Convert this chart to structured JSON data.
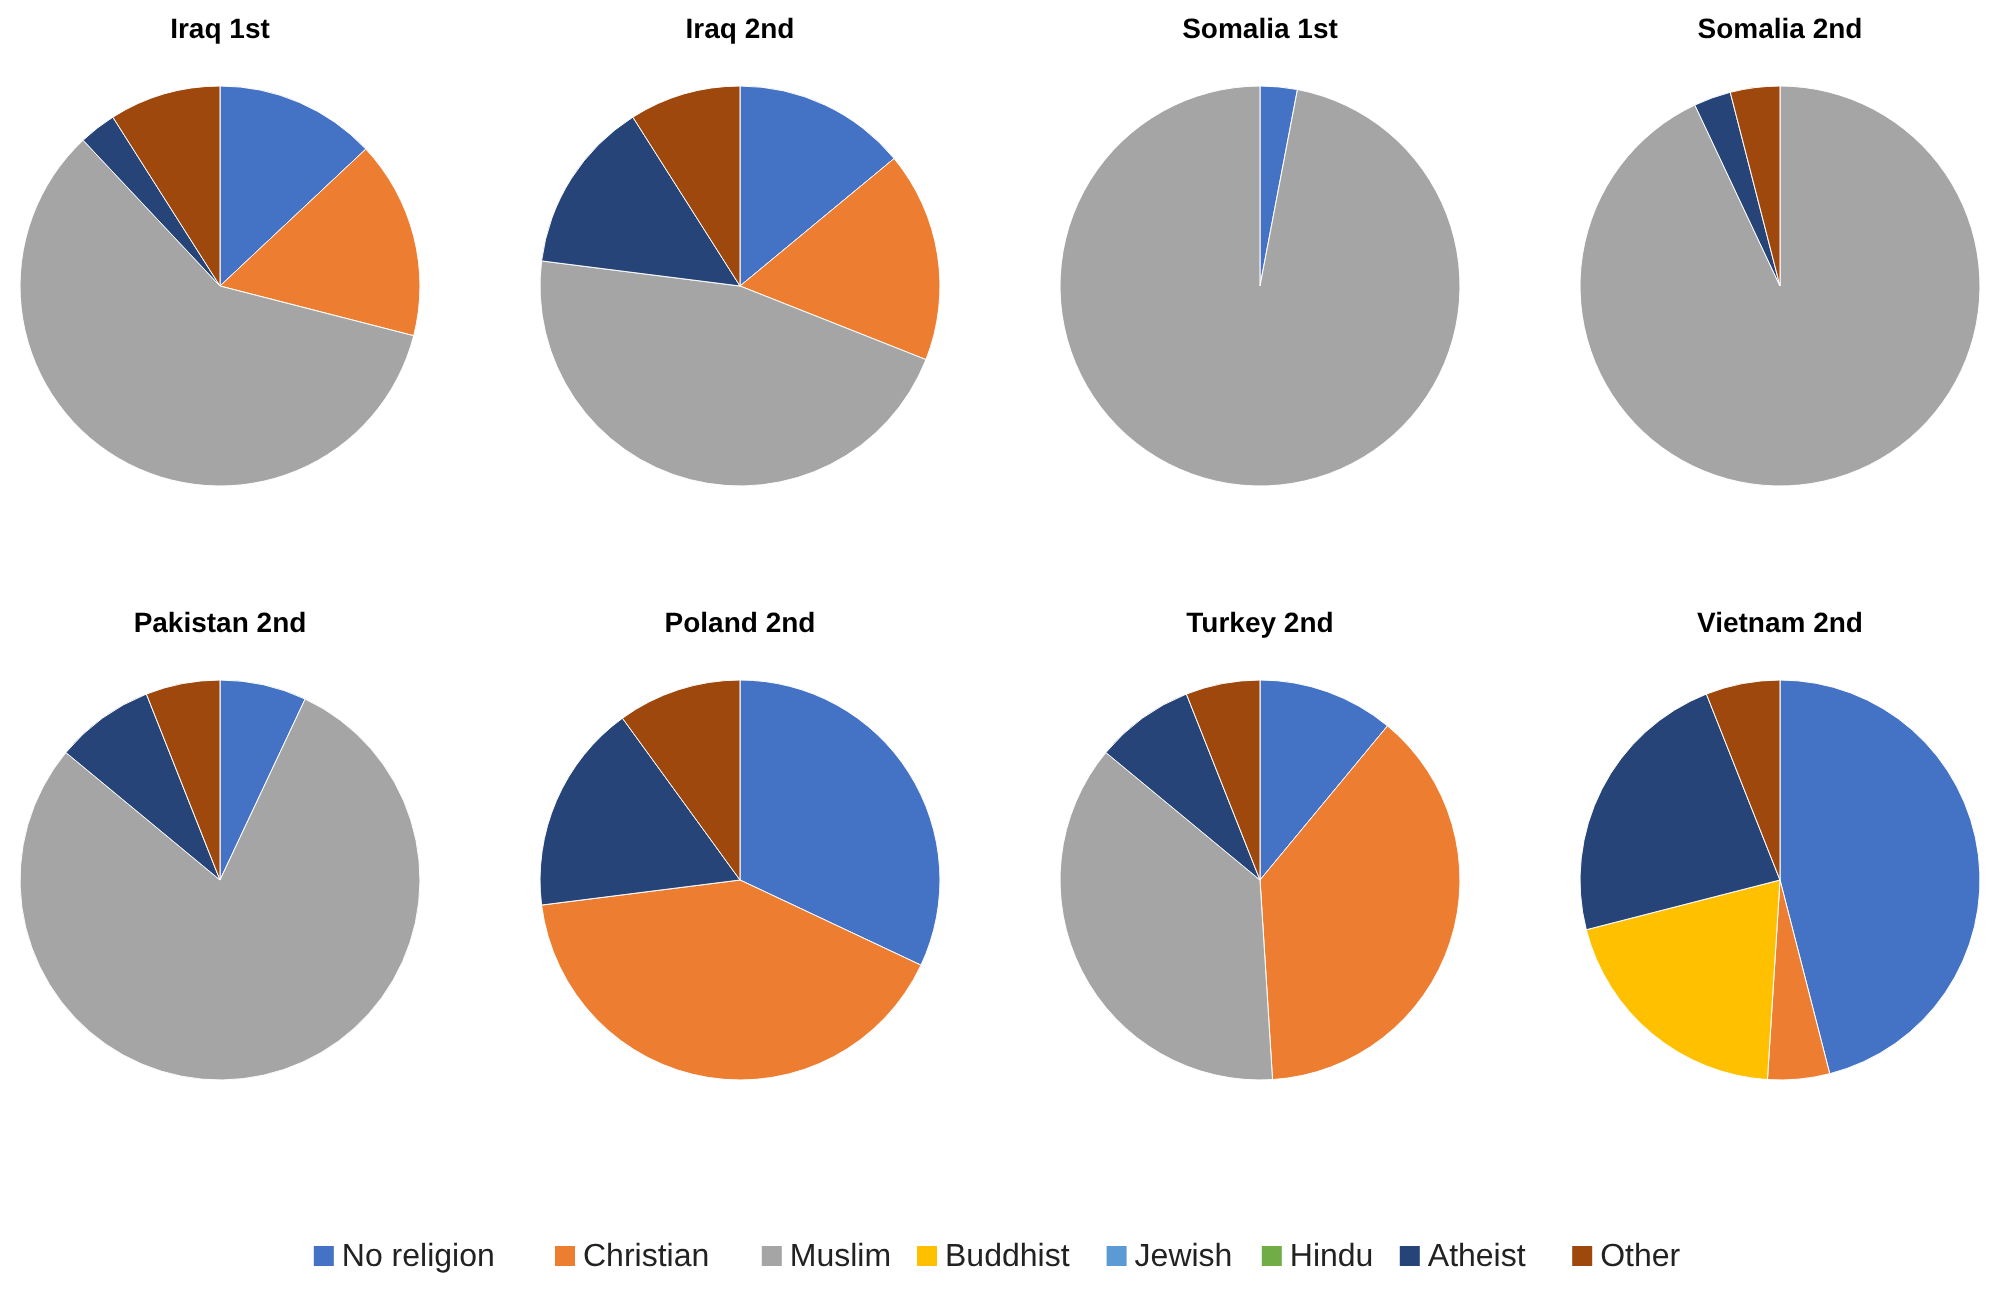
{
  "chart_data": [
    {
      "type": "pie",
      "title": "Iraq 1st",
      "legend": "bottom",
      "categories": [
        "No religion",
        "Christian",
        "Muslim",
        "Buddhist",
        "Jewish",
        "Hindu",
        "Atheist",
        "Other"
      ],
      "values": [
        13,
        16,
        59,
        0,
        0,
        0,
        3,
        9
      ],
      "colors": [
        "#4472c4",
        "#ed7d31",
        "#a5a5a5",
        "#ffc000",
        "#5b9bd5",
        "#70ad47",
        "#264478",
        "#9e480e"
      ]
    },
    {
      "type": "pie",
      "title": "Iraq 2nd",
      "categories": [
        null,
        null,
        null,
        null,
        null
      ],
      "values": [
        14,
        17,
        46,
        14,
        9
      ],
      "colors": [
        "#4472c4",
        "#ed7d31",
        "#a5a5a5",
        "#264478",
        "#9e480e"
      ]
    },
    {
      "type": "pie",
      "title": "Somalia 1st",
      "categories": [
        null,
        null
      ],
      "values": [
        3,
        97
      ],
      "colors": [
        "#4472c4",
        "#a5a5a5"
      ]
    },
    {
      "type": "pie",
      "title": "Somalia 2nd",
      "categories": [
        null,
        null,
        null
      ],
      "values": [
        93,
        3,
        4
      ],
      "colors": [
        "#a5a5a5",
        "#264478",
        "#9e480e"
      ]
    },
    {
      "type": "pie",
      "title": "Pakistan 2nd",
      "categories": [
        null,
        null,
        null,
        null
      ],
      "values": [
        7,
        79,
        8,
        6
      ],
      "colors": [
        "#4472c4",
        "#a5a5a5",
        "#264478",
        "#9e480e"
      ]
    },
    {
      "type": "pie",
      "title": "Poland 2nd",
      "categories": [
        null,
        null,
        null,
        null
      ],
      "values": [
        32,
        41,
        17,
        10
      ],
      "colors": [
        "#4472c4",
        "#ed7d31",
        "#264478",
        "#9e480e"
      ]
    },
    {
      "type": "pie",
      "title": "Turkey 2nd",
      "categories": [
        null,
        null,
        null,
        null,
        null
      ],
      "values": [
        11,
        38,
        37,
        8,
        6
      ],
      "colors": [
        "#4472c4",
        "#ed7d31",
        "#a5a5a5",
        "#264478",
        "#9e480e"
      ]
    },
    {
      "type": "pie",
      "title": "Vietnam 2nd",
      "categories": [
        null,
        null,
        null,
        null,
        null
      ],
      "values": [
        46,
        5,
        20,
        23,
        6
      ],
      "colors": [
        "#4472c4",
        "#ed7d31",
        "#ffc000",
        "#264478",
        "#9e480e"
      ]
    }
  ]
}
